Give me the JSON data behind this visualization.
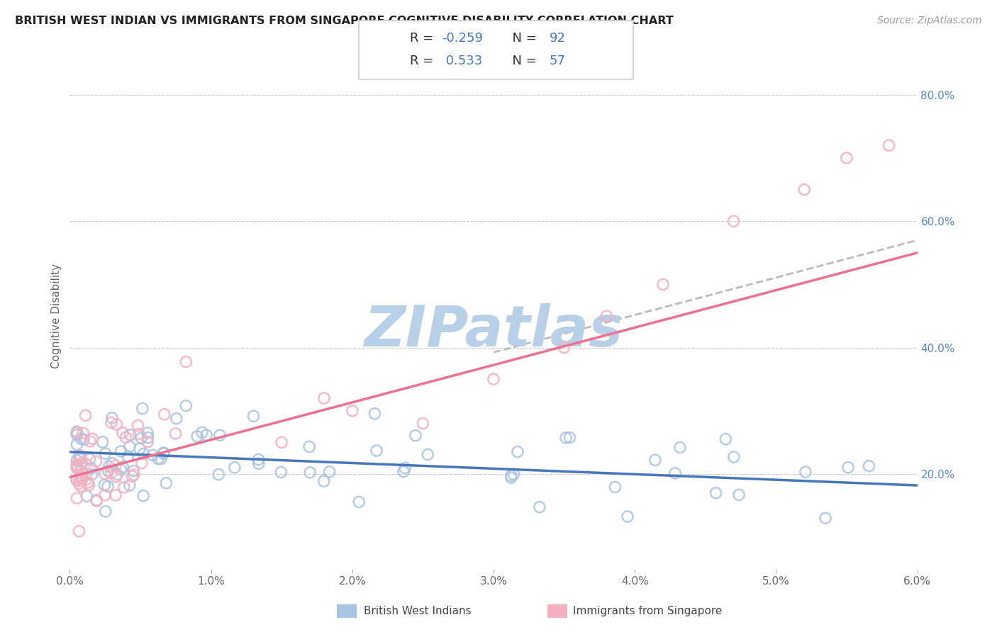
{
  "title": "BRITISH WEST INDIAN VS IMMIGRANTS FROM SINGAPORE COGNITIVE DISABILITY CORRELATION CHART",
  "source_text": "Source: ZipAtlas.com",
  "ylabel": "Cognitive Disability",
  "x_label_blue": "British West Indians",
  "x_label_pink": "Immigrants from Singapore",
  "xmin": 0.0,
  "xmax": 0.06,
  "ymin": 0.05,
  "ymax": 0.85,
  "right_yticks": [
    0.2,
    0.4,
    0.6,
    0.8
  ],
  "right_yticklabels": [
    "20.0%",
    "40.0%",
    "60.0%",
    "80.0%"
  ],
  "xticks": [
    0.0,
    0.01,
    0.02,
    0.03,
    0.04,
    0.05,
    0.06
  ],
  "xticklabels": [
    "0.0%",
    "1.0%",
    "2.0%",
    "3.0%",
    "4.0%",
    "5.0%",
    "6.0%"
  ],
  "r_blue": -0.259,
  "n_blue": 92,
  "r_pink": 0.533,
  "n_pink": 57,
  "blue_color": "#a8c4e0",
  "pink_color": "#f5b0c0",
  "blue_line_color": "#4477bb",
  "pink_line_color": "#ee7090",
  "trendline_dash_color": "#bbbbbb",
  "grid_color": "#cccccc",
  "watermark_color": "#b8cfe8"
}
